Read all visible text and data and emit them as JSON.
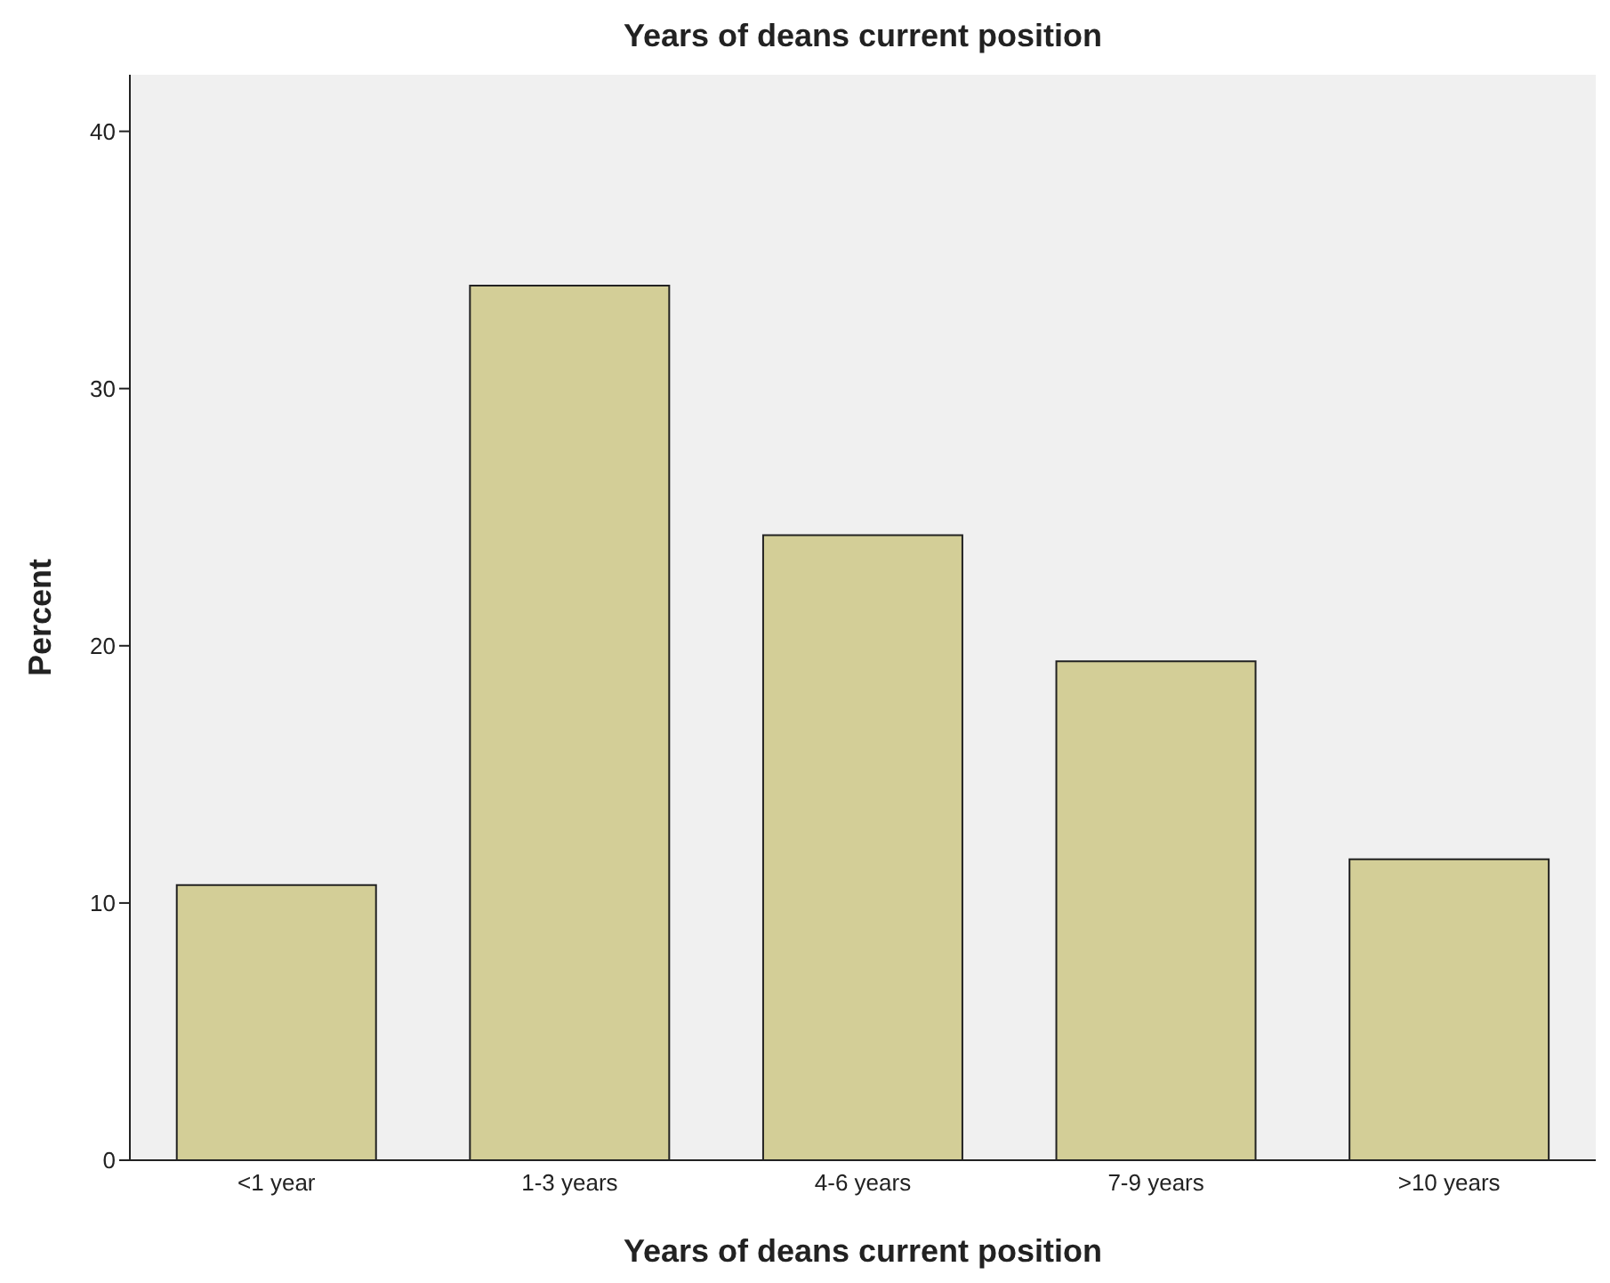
{
  "chart_data": {
    "type": "bar",
    "title": "Years of deans current position",
    "xlabel": "Years of deans current position",
    "ylabel": "Percent",
    "categories": [
      "<1 year",
      "1-3 years",
      "4-6 years",
      "7-9 years",
      ">10 years"
    ],
    "values": [
      10.7,
      34.0,
      24.3,
      19.4,
      11.7
    ],
    "color": "#d3ce97",
    "ylim": [
      0,
      42.2
    ],
    "yticks": [
      0,
      10,
      20,
      30,
      40
    ],
    "grid": false
  }
}
